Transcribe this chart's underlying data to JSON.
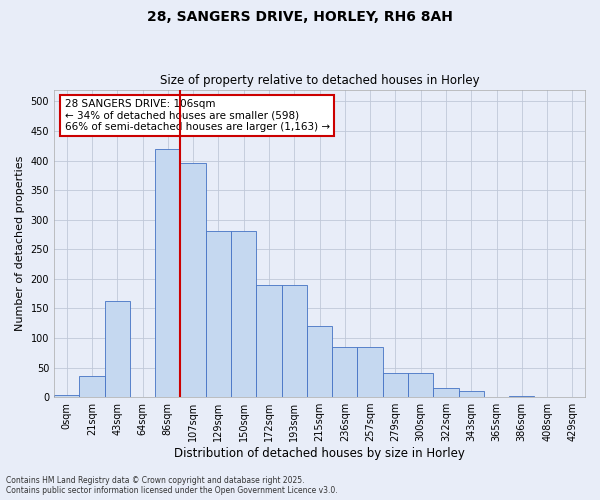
{
  "title1": "28, SANGERS DRIVE, HORLEY, RH6 8AH",
  "title2": "Size of property relative to detached houses in Horley",
  "xlabel": "Distribution of detached houses by size in Horley",
  "ylabel": "Number of detached properties",
  "bin_labels": [
    "0sqm",
    "21sqm",
    "43sqm",
    "64sqm",
    "86sqm",
    "107sqm",
    "129sqm",
    "150sqm",
    "172sqm",
    "193sqm",
    "215sqm",
    "236sqm",
    "257sqm",
    "279sqm",
    "300sqm",
    "322sqm",
    "343sqm",
    "365sqm",
    "386sqm",
    "408sqm",
    "429sqm"
  ],
  "bar_heights": [
    3,
    35,
    163,
    0,
    420,
    395,
    280,
    280,
    190,
    190,
    120,
    85,
    85,
    40,
    40,
    15,
    10,
    0,
    2,
    0,
    0
  ],
  "bar_color": "#c5d8f0",
  "bar_edge_color": "#4472c4",
  "vline_x": 4.5,
  "annotation_line1": "28 SANGERS DRIVE: 106sqm",
  "annotation_line2": "← 34% of detached houses are smaller (598)",
  "annotation_line3": "66% of semi-detached houses are larger (1,163) →",
  "annotation_box_facecolor": "#ffffff",
  "annotation_box_edgecolor": "#cc0000",
  "vline_color": "#cc0000",
  "ylim": [
    0,
    520
  ],
  "yticks": [
    0,
    50,
    100,
    150,
    200,
    250,
    300,
    350,
    400,
    450,
    500
  ],
  "grid_color": "#c0c8d8",
  "footnote1": "Contains HM Land Registry data © Crown copyright and database right 2025.",
  "footnote2": "Contains public sector information licensed under the Open Government Licence v3.0.",
  "bg_color": "#e8edf8",
  "plot_bg_color": "#e8edf8",
  "title1_fontsize": 10,
  "title2_fontsize": 8.5,
  "ylabel_fontsize": 8,
  "xlabel_fontsize": 8.5,
  "tick_fontsize": 7,
  "annot_fontsize": 7.5,
  "footnote_fontsize": 5.5
}
